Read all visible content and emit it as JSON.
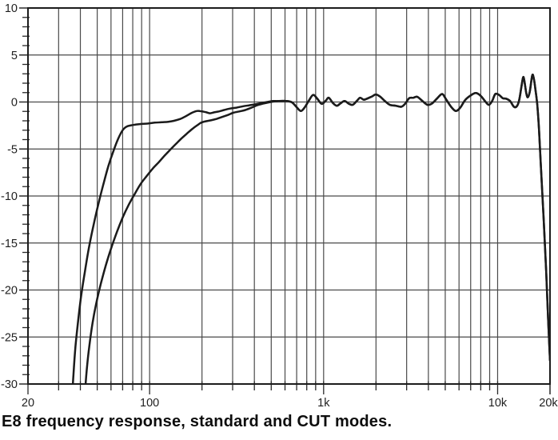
{
  "caption": "E8 frequency response, standard and CUT modes.",
  "colors": {
    "background": "#ffffff",
    "grid": "#4a4a4a",
    "frame": "#1c1c1c",
    "curve": "#1b1b1b",
    "tick": "#2a2a2a",
    "label_text": "#1f1f1f",
    "caption_text": "#0d0d0d"
  },
  "chart_data": {
    "type": "line",
    "title": "",
    "xlabel": "",
    "ylabel": "",
    "grid": true,
    "legend": "none",
    "x_axis": {
      "scale": "log",
      "min": 20,
      "max": 20000,
      "unit": "Hz",
      "tick_labels": [
        {
          "value": 20,
          "label": "20"
        },
        {
          "value": 100,
          "label": "100"
        },
        {
          "value": 1000,
          "label": "1k"
        },
        {
          "value": 10000,
          "label": "10k"
        },
        {
          "value": 20000,
          "label": "20k"
        }
      ]
    },
    "y_axis": {
      "scale": "linear",
      "min": -30,
      "max": 10,
      "unit": "dB",
      "major_step": 5,
      "minor_step": 1,
      "tick_labels": [
        {
          "value": 10,
          "label": "10"
        },
        {
          "value": 5,
          "label": "5"
        },
        {
          "value": 0,
          "label": "0"
        },
        {
          "value": -5,
          "label": "-5"
        },
        {
          "value": -10,
          "label": "-10"
        },
        {
          "value": -15,
          "label": "-15"
        },
        {
          "value": -20,
          "label": "-20"
        },
        {
          "value": -25,
          "label": "-25"
        },
        {
          "value": -30,
          "label": "-30"
        }
      ]
    },
    "series": [
      {
        "name": "standard",
        "points": [
          [
            36,
            -31
          ],
          [
            36.5,
            -29
          ],
          [
            37.5,
            -26
          ],
          [
            39,
            -23
          ],
          [
            40.5,
            -20.5
          ],
          [
            42.5,
            -18
          ],
          [
            45,
            -15.3
          ],
          [
            48,
            -12.8
          ],
          [
            51,
            -10.7
          ],
          [
            54.5,
            -8.6
          ],
          [
            58,
            -6.8
          ],
          [
            62,
            -5.2
          ],
          [
            66,
            -3.9
          ],
          [
            70,
            -3.0
          ],
          [
            74,
            -2.6
          ],
          [
            80,
            -2.45
          ],
          [
            88,
            -2.35
          ],
          [
            97,
            -2.3
          ],
          [
            107,
            -2.2
          ],
          [
            118,
            -2.15
          ],
          [
            128,
            -2.1
          ],
          [
            138,
            -2.0
          ],
          [
            150,
            -1.8
          ],
          [
            162,
            -1.5
          ],
          [
            175,
            -1.15
          ],
          [
            188,
            -0.95
          ],
          [
            200,
            -1.0
          ],
          [
            212,
            -1.1
          ],
          [
            222,
            -1.2
          ],
          [
            235,
            -1.1
          ],
          [
            250,
            -1.0
          ],
          [
            268,
            -0.85
          ],
          [
            290,
            -0.7
          ],
          [
            315,
            -0.6
          ],
          [
            345,
            -0.45
          ],
          [
            375,
            -0.35
          ],
          [
            405,
            -0.25
          ],
          [
            440,
            -0.1
          ],
          [
            475,
            0
          ],
          [
            510,
            0.1
          ],
          [
            545,
            0.1
          ]
        ]
      },
      {
        "name": "CUT",
        "points": [
          [
            42.5,
            -31
          ],
          [
            43.5,
            -28.5
          ],
          [
            45,
            -26
          ],
          [
            47,
            -23.5
          ],
          [
            49.5,
            -21.3
          ],
          [
            52.5,
            -19.3
          ],
          [
            56,
            -17.4
          ],
          [
            60,
            -15.6
          ],
          [
            65,
            -13.8
          ],
          [
            70,
            -12.3
          ],
          [
            76,
            -10.9
          ],
          [
            82,
            -9.8
          ],
          [
            89,
            -8.7
          ],
          [
            96,
            -7.9
          ],
          [
            104,
            -7.1
          ],
          [
            113,
            -6.4
          ],
          [
            122,
            -5.7
          ],
          [
            131,
            -5.1
          ],
          [
            141,
            -4.5
          ],
          [
            152,
            -3.9
          ],
          [
            163,
            -3.4
          ],
          [
            175,
            -2.9
          ],
          [
            187,
            -2.5
          ],
          [
            198,
            -2.2
          ],
          [
            210,
            -2.05
          ],
          [
            225,
            -1.95
          ],
          [
            242,
            -1.8
          ],
          [
            260,
            -1.6
          ],
          [
            280,
            -1.4
          ],
          [
            302,
            -1.15
          ],
          [
            328,
            -1.0
          ],
          [
            355,
            -0.85
          ],
          [
            385,
            -0.6
          ],
          [
            415,
            -0.35
          ],
          [
            448,
            -0.18
          ],
          [
            480,
            -0.05
          ],
          [
            515,
            0.05
          ],
          [
            548,
            0.1
          ]
        ]
      }
    ],
    "shared_high_freq_points": [
      [
        580,
        0.12
      ],
      [
        620,
        0.1
      ],
      [
        660,
        -0.05
      ],
      [
        700,
        -0.55
      ],
      [
        740,
        -0.95
      ],
      [
        780,
        -0.55
      ],
      [
        820,
        0.1
      ],
      [
        870,
        0.75
      ],
      [
        920,
        0.35
      ],
      [
        975,
        -0.2
      ],
      [
        1030,
        0.15
      ],
      [
        1070,
        0.45
      ],
      [
        1130,
        -0.1
      ],
      [
        1190,
        -0.4
      ],
      [
        1250,
        -0.15
      ],
      [
        1320,
        0.1
      ],
      [
        1400,
        -0.2
      ],
      [
        1470,
        -0.3
      ],
      [
        1550,
        0.1
      ],
      [
        1620,
        0.45
      ],
      [
        1700,
        0.25
      ],
      [
        1800,
        0.4
      ],
      [
        1900,
        0.6
      ],
      [
        2000,
        0.8
      ],
      [
        2120,
        0.55
      ],
      [
        2250,
        0.1
      ],
      [
        2400,
        -0.3
      ],
      [
        2600,
        -0.4
      ],
      [
        2800,
        -0.5
      ],
      [
        2950,
        -0.15
      ],
      [
        3100,
        0.4
      ],
      [
        3280,
        0.45
      ],
      [
        3450,
        0.55
      ],
      [
        3700,
        0.1
      ],
      [
        3950,
        -0.3
      ],
      [
        4200,
        -0.15
      ],
      [
        4500,
        0.4
      ],
      [
        4800,
        0.85
      ],
      [
        5050,
        0.3
      ],
      [
        5400,
        -0.5
      ],
      [
        5750,
        -0.95
      ],
      [
        6100,
        -0.6
      ],
      [
        6500,
        0.2
      ],
      [
        7000,
        0.7
      ],
      [
        7500,
        0.95
      ],
      [
        8000,
        0.65
      ],
      [
        8500,
        0.05
      ],
      [
        8900,
        -0.3
      ],
      [
        9300,
        0.1
      ],
      [
        9700,
        0.85
      ],
      [
        10200,
        0.75
      ],
      [
        10700,
        0.4
      ],
      [
        11200,
        0.35
      ],
      [
        11800,
        0.1
      ],
      [
        12400,
        -0.5
      ],
      [
        12900,
        -0.45
      ],
      [
        13300,
        0.2
      ],
      [
        13700,
        1.6
      ],
      [
        14000,
        2.6
      ],
      [
        14200,
        2.4
      ],
      [
        14600,
        1.0
      ],
      [
        14900,
        0.5
      ],
      [
        15300,
        1.1
      ],
      [
        15800,
        2.8
      ],
      [
        16100,
        2.6
      ],
      [
        16500,
        1.3
      ],
      [
        16900,
        -0.3
      ],
      [
        17300,
        -3
      ],
      [
        17800,
        -7.5
      ],
      [
        18400,
        -12.5
      ],
      [
        19000,
        -18
      ],
      [
        19500,
        -23
      ],
      [
        20000,
        -27.5
      ]
    ]
  }
}
